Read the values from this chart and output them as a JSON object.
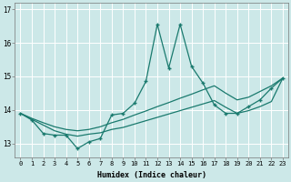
{
  "xlabel": "Humidex (Indice chaleur)",
  "background_color": "#cce8e8",
  "grid_color": "#ffffff",
  "line_color": "#1a7a6e",
  "x": [
    0,
    1,
    2,
    3,
    4,
    5,
    6,
    7,
    8,
    9,
    10,
    11,
    12,
    13,
    14,
    15,
    16,
    17,
    18,
    19,
    20,
    21,
    22,
    23
  ],
  "y_main": [
    13.9,
    13.7,
    13.3,
    13.25,
    13.25,
    12.85,
    13.05,
    13.15,
    13.85,
    13.9,
    14.2,
    14.85,
    16.55,
    15.25,
    16.55,
    15.3,
    14.8,
    14.15,
    13.9,
    13.9,
    14.1,
    14.3,
    14.65,
    14.95
  ],
  "y_upper": [
    13.9,
    13.75,
    13.62,
    13.5,
    13.42,
    13.38,
    13.42,
    13.5,
    13.62,
    13.72,
    13.85,
    13.97,
    14.1,
    14.22,
    14.35,
    14.47,
    14.6,
    14.72,
    14.5,
    14.3,
    14.38,
    14.55,
    14.72,
    14.95
  ],
  "y_lower": [
    13.9,
    13.72,
    13.55,
    13.38,
    13.28,
    13.22,
    13.28,
    13.32,
    13.42,
    13.48,
    13.58,
    13.68,
    13.78,
    13.88,
    13.98,
    14.08,
    14.18,
    14.28,
    14.08,
    13.9,
    13.98,
    14.1,
    14.25,
    14.95
  ],
  "ylim": [
    12.6,
    17.2
  ],
  "yticks": [
    13,
    14,
    15,
    16,
    17
  ],
  "xticks": [
    0,
    1,
    2,
    3,
    4,
    5,
    6,
    7,
    8,
    9,
    10,
    11,
    12,
    13,
    14,
    15,
    16,
    17,
    18,
    19,
    20,
    21,
    22,
    23
  ],
  "xtick_labels": [
    "0",
    "1",
    "2",
    "3",
    "4",
    "5",
    "6",
    "7",
    "8",
    "9",
    "10",
    "11",
    "12",
    "13",
    "14",
    "15",
    "16",
    "17",
    "18",
    "19",
    "20",
    "21",
    "22",
    "23"
  ]
}
